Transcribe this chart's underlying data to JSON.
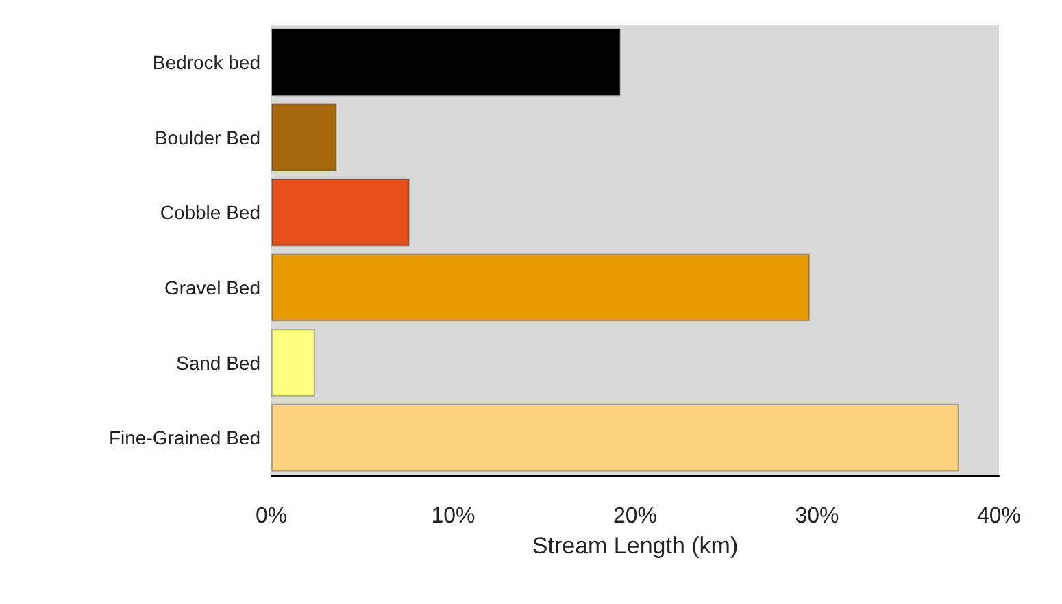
{
  "chart_data": {
    "type": "bar",
    "orientation": "horizontal",
    "xlabel": "Stream Length (km)",
    "categories": [
      "Bedrock bed",
      "Boulder Bed",
      "Cobble Bed",
      "Gravel Bed",
      "Sand Bed",
      "Fine-Grained Bed"
    ],
    "values": [
      19.2,
      3.6,
      7.6,
      29.6,
      2.4,
      37.8
    ],
    "colors": [
      "#000000",
      "#a8690c",
      "#e8501a",
      "#e69b00",
      "#ffff80",
      "#ffd27f"
    ],
    "xlim": [
      0,
      40
    ],
    "xticks": [
      {
        "value": 0,
        "label": "0%"
      },
      {
        "value": 10,
        "label": "10%"
      },
      {
        "value": 20,
        "label": "20%"
      },
      {
        "value": 30,
        "label": "30%"
      },
      {
        "value": 40,
        "label": "40%"
      }
    ],
    "grid": false
  }
}
